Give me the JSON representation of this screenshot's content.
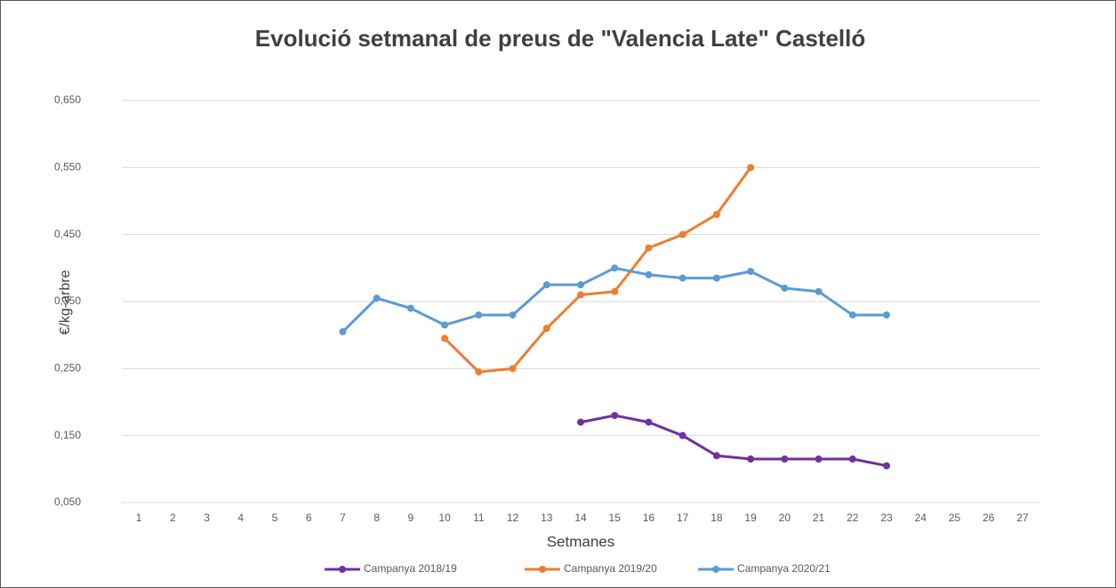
{
  "chart_data": {
    "type": "line",
    "title": "Evolució setmanal de preus de \"Valencia Late\" Castelló",
    "x_label": "Setmanes",
    "y_label": "€/kg-arbre",
    "categories": [
      "1",
      "2",
      "3",
      "4",
      "5",
      "6",
      "7",
      "8",
      "9",
      "10",
      "11",
      "12",
      "13",
      "14",
      "15",
      "16",
      "17",
      "18",
      "19",
      "20",
      "21",
      "22",
      "23",
      "24",
      "25",
      "26",
      "27"
    ],
    "ylim": [
      0.05,
      0.65
    ],
    "yticks": [
      {
        "value": 0.05,
        "label": "0,050"
      },
      {
        "value": 0.15,
        "label": "0,150"
      },
      {
        "value": 0.25,
        "label": "0,250"
      },
      {
        "value": 0.35,
        "label": "0,350"
      },
      {
        "value": 0.45,
        "label": "0,450"
      },
      {
        "value": 0.55,
        "label": "0,550"
      },
      {
        "value": 0.65,
        "label": "0,650"
      }
    ],
    "grid": true,
    "legend": "bottom",
    "series": [
      {
        "name": "Campanya 2018/19",
        "color": "#7030a0",
        "values": [
          null,
          null,
          null,
          null,
          null,
          null,
          null,
          null,
          null,
          null,
          null,
          null,
          null,
          0.17,
          0.18,
          0.17,
          0.15,
          0.12,
          0.115,
          0.115,
          0.115,
          0.115,
          0.105,
          null,
          null,
          null,
          null
        ]
      },
      {
        "name": "Campanya 2019/20",
        "color": "#ed7d31",
        "values": [
          null,
          null,
          null,
          null,
          null,
          null,
          null,
          null,
          null,
          0.295,
          0.245,
          0.25,
          0.31,
          0.36,
          0.365,
          0.43,
          0.45,
          0.48,
          0.55,
          null,
          null,
          null,
          null,
          null,
          null,
          null,
          null
        ]
      },
      {
        "name": "Campanya 2020/21",
        "color": "#5b9bd5",
        "values": [
          null,
          null,
          null,
          null,
          null,
          null,
          0.305,
          0.355,
          0.34,
          0.315,
          0.33,
          0.33,
          0.375,
          0.375,
          0.4,
          0.39,
          0.385,
          0.385,
          0.395,
          0.37,
          0.365,
          0.33,
          0.33,
          null,
          null,
          null,
          null
        ]
      }
    ]
  }
}
